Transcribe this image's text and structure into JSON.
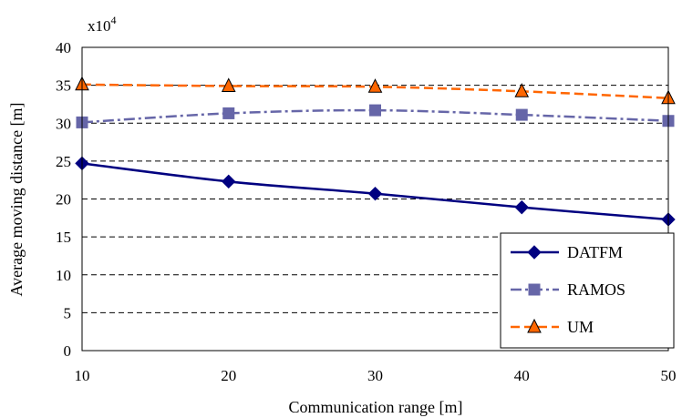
{
  "chart_data": {
    "type": "line",
    "title": "",
    "xlabel": "Communication range [m]",
    "ylabel": "Average moving distance [m]",
    "y_multiplier_base": "x10",
    "y_multiplier_exp": "4",
    "x": [
      10,
      20,
      30,
      40,
      50
    ],
    "xlim": [
      10,
      50
    ],
    "ylim": [
      0,
      40
    ],
    "x_ticks": [
      "10",
      "20",
      "30",
      "40",
      "50"
    ],
    "y_ticks": [
      "0",
      "5",
      "10",
      "15",
      "20",
      "25",
      "30",
      "35",
      "40"
    ],
    "grid": "horizontal dashed",
    "legend_position": "bottom-right",
    "series": [
      {
        "name": "DATFM",
        "values": [
          24.7,
          22.3,
          20.7,
          18.9,
          17.3
        ],
        "color": "#000080",
        "marker": "diamond",
        "dash": "solid"
      },
      {
        "name": "RAMOS",
        "values": [
          30.1,
          31.3,
          31.7,
          31.1,
          30.3
        ],
        "color": "#6666a8",
        "marker": "square",
        "dash": "dashdot"
      },
      {
        "name": "UM",
        "values": [
          35.1,
          34.9,
          34.8,
          34.2,
          33.3
        ],
        "color": "#ff6600",
        "marker": "triangle",
        "dash": "dash"
      }
    ]
  }
}
